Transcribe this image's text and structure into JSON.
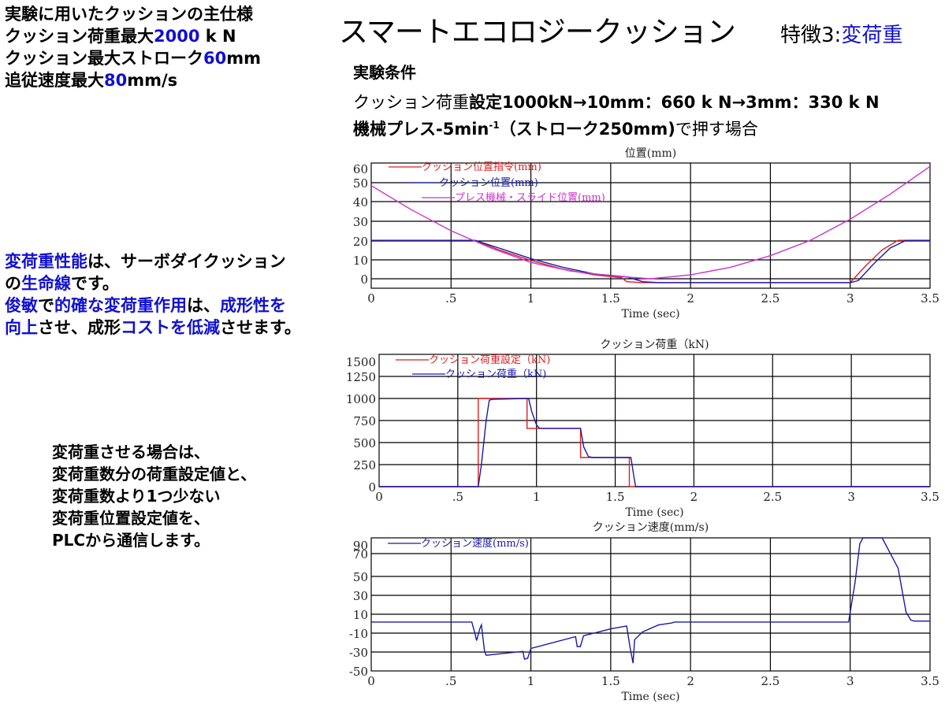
{
  "spec": {
    "line1": "実験に用いたクッションの主仕様",
    "line2_prefix": "クッション荷重最大",
    "line2_value": "2000",
    "line2_unit": " k N",
    "line3_prefix": "クッション最大ストローク",
    "line3_value": "60",
    "line3_unit": "mm",
    "line4_prefix": "追従速度最大",
    "line4_value": "80",
    "line4_unit": "mm/s"
  },
  "header": {
    "title": "スマートエコロジークッション",
    "feature_prefix": "特徴3:",
    "feature_name": "変荷重"
  },
  "conditions": {
    "heading": "実験条件",
    "line1_a": "クッション荷重",
    "line1_b": "設定1000kN→10mm：660 k N→3mm：330 k N",
    "line2_a": "機械プレス-5min",
    "line2_sup": "-1",
    "line2_b": "（ストローク250mm)",
    "line2_c": "で押す場合"
  },
  "mid_text": {
    "p1_blue": "変荷重性能",
    "p1_black": "は、サーボダイクッション",
    "p2_black1": "の",
    "p2_blue": "生命線",
    "p2_black2": "です。",
    "p3_blue1": "俊敏",
    "p3_black1": "で",
    "p3_blue2": "的確な変荷重作用",
    "p3_black2": "は、",
    "p3_blue3": "成形性を",
    "p4_blue1": "向上",
    "p4_black1": "させ、成形",
    "p4_blue2": "コストを低減",
    "p4_black2": "させます。"
  },
  "bottom_note": {
    "lines": [
      "変荷重させる場合は、",
      "変荷重数分の荷重設定値と、",
      "変荷重数より1つ少ない",
      "変荷重位置設定値を、",
      "PLCから通信します。"
    ]
  },
  "colors": {
    "accent_blue": "#1010d0",
    "series_red": "#dd1f1f",
    "series_blue": "#1a1aa8",
    "series_magenta": "#cc33cc"
  },
  "chart_data": [
    {
      "type": "line",
      "title": "位置(mm)",
      "xlabel": "Time (sec)",
      "ylabel": "",
      "xlim": [
        0,
        3.5
      ],
      "ylim": [
        -5,
        60
      ],
      "x_ticks": [
        "0",
        ".5",
        "1",
        "1.5",
        "2",
        "2.5",
        "3",
        "3.5"
      ],
      "y_ticks": [
        "60",
        "50",
        "40",
        "30",
        "20",
        "10",
        "0"
      ],
      "grid": true,
      "legend_position": "top-left inside",
      "series": [
        {
          "name": "クッション位置指令(mm)",
          "color": "#dd1f1f",
          "points": [
            [
              0,
              20
            ],
            [
              0.65,
              20
            ],
            [
              0.8,
              15
            ],
            [
              1.0,
              9.5
            ],
            [
              1.2,
              5
            ],
            [
              1.4,
              2
            ],
            [
              1.57,
              0.5
            ],
            [
              1.6,
              -1.5
            ],
            [
              1.7,
              -2
            ],
            [
              3.0,
              -2
            ],
            [
              3.1,
              7
            ],
            [
              3.2,
              15
            ],
            [
              3.3,
              20
            ],
            [
              3.5,
              20
            ]
          ]
        },
        {
          "name": "クッション位置(mm)",
          "color": "#1a1aa8",
          "points": [
            [
              0,
              20
            ],
            [
              0.65,
              20
            ],
            [
              0.8,
              16
            ],
            [
              1.0,
              10.5
            ],
            [
              1.2,
              6
            ],
            [
              1.4,
              2.5
            ],
            [
              1.6,
              1
            ],
            [
              1.7,
              -1.5
            ],
            [
              1.8,
              -2
            ],
            [
              3.0,
              -2
            ],
            [
              3.05,
              -1
            ],
            [
              3.15,
              8
            ],
            [
              3.25,
              16
            ],
            [
              3.35,
              20
            ],
            [
              3.5,
              20
            ]
          ]
        },
        {
          "name": "プレス機械・スライド位置(mm)",
          "color": "#cc33cc",
          "points": [
            [
              0,
              48.5
            ],
            [
              0.25,
              36
            ],
            [
              0.5,
              25
            ],
            [
              0.75,
              16
            ],
            [
              1.0,
              8.5
            ],
            [
              1.25,
              4
            ],
            [
              1.5,
              1.5
            ],
            [
              1.75,
              0
            ],
            [
              2.0,
              2
            ],
            [
              2.25,
              6
            ],
            [
              2.5,
              12
            ],
            [
              2.75,
              20
            ],
            [
              3.0,
              31
            ],
            [
              3.25,
              44
            ],
            [
              3.5,
              58.5
            ]
          ]
        }
      ]
    },
    {
      "type": "line",
      "title": "クッション荷重（kN)",
      "xlabel": "Time (sec)",
      "ylabel": "",
      "xlim": [
        0,
        3.5
      ],
      "ylim": [
        0,
        1500
      ],
      "x_ticks": [
        "0",
        ".5",
        "1",
        "1.5",
        "2",
        "2.5",
        "3",
        "3.5"
      ],
      "y_ticks": [
        "1500",
        "1250",
        "1000",
        "750",
        "500",
        "250",
        "0"
      ],
      "grid": true,
      "legend_position": "top-left inside",
      "series": [
        {
          "name": "クッション荷重設定（kN)",
          "color": "#dd1f1f",
          "points": [
            [
              0,
              0
            ],
            [
              0.63,
              0
            ],
            [
              0.63,
              1000
            ],
            [
              0.94,
              1000
            ],
            [
              0.94,
              660
            ],
            [
              1.28,
              660
            ],
            [
              1.28,
              330
            ],
            [
              1.59,
              330
            ],
            [
              1.59,
              0
            ],
            [
              3.5,
              0
            ]
          ]
        },
        {
          "name": "クッション荷重（kN)",
          "color": "#1a1aa8",
          "points": [
            [
              0,
              0
            ],
            [
              0.63,
              0
            ],
            [
              0.65,
              250
            ],
            [
              0.68,
              750
            ],
            [
              0.7,
              980
            ],
            [
              0.72,
              990
            ],
            [
              0.95,
              1000
            ],
            [
              0.97,
              850
            ],
            [
              1.0,
              700
            ],
            [
              1.02,
              660
            ],
            [
              1.28,
              660
            ],
            [
              1.3,
              450
            ],
            [
              1.33,
              340
            ],
            [
              1.36,
              330
            ],
            [
              1.6,
              330
            ],
            [
              1.62,
              100
            ],
            [
              1.63,
              0
            ],
            [
              3.5,
              0
            ]
          ]
        }
      ]
    },
    {
      "type": "line",
      "title": "クッション速度(mm/s)",
      "xlabel": "Time (sec)",
      "ylabel": "",
      "xlim": [
        0,
        3.5
      ],
      "ylim": [
        -50,
        96
      ],
      "x_ticks": [
        "0",
        ".5",
        "1",
        "1.5",
        "2",
        "2.5",
        "3",
        "3.5"
      ],
      "y_ticks": [
        "90",
        "70",
        "50",
        "30",
        "10",
        "-10",
        "-30",
        "-50"
      ],
      "grid": true,
      "legend_position": "top-left inside",
      "series": [
        {
          "name": "クッション速度(mm/s)",
          "color": "#1a1aa8",
          "points": [
            [
              0,
              0
            ],
            [
              0.63,
              0
            ],
            [
              0.65,
              -12
            ],
            [
              0.66,
              -19
            ],
            [
              0.68,
              -7
            ],
            [
              0.69,
              -3
            ],
            [
              0.71,
              -30
            ],
            [
              0.72,
              -34
            ],
            [
              0.95,
              -30
            ],
            [
              0.96,
              -38
            ],
            [
              0.98,
              -37
            ],
            [
              1.0,
              -27
            ],
            [
              1.28,
              -15
            ],
            [
              1.29,
              -25
            ],
            [
              1.31,
              -25
            ],
            [
              1.33,
              -14
            ],
            [
              1.5,
              -7
            ],
            [
              1.6,
              -4
            ],
            [
              1.62,
              -25
            ],
            [
              1.64,
              -42
            ],
            [
              1.65,
              -18
            ],
            [
              1.7,
              -10
            ],
            [
              1.8,
              -3
            ],
            [
              1.88,
              -1
            ],
            [
              1.9,
              0
            ],
            [
              2.99,
              0
            ],
            [
              3.0,
              10
            ],
            [
              3.03,
              40
            ],
            [
              3.06,
              80
            ],
            [
              3.08,
              95
            ],
            [
              3.2,
              95
            ],
            [
              3.3,
              55
            ],
            [
              3.35,
              10
            ],
            [
              3.38,
              2
            ],
            [
              3.4,
              1
            ],
            [
              3.5,
              1
            ]
          ]
        }
      ]
    }
  ]
}
